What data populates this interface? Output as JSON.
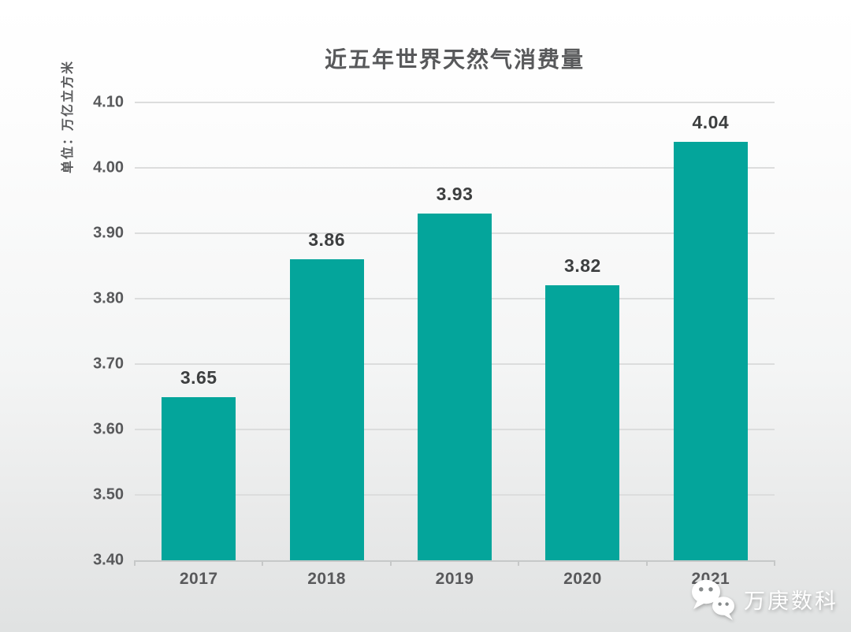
{
  "chart_data": {
    "type": "bar",
    "title": "近五年世界天然气消费量",
    "ylabel": "单位：万亿立方米",
    "xlabel": "",
    "categories": [
      "2017",
      "2018",
      "2019",
      "2020",
      "2021"
    ],
    "values": [
      3.65,
      3.86,
      3.93,
      3.82,
      4.04
    ],
    "value_label_decimals": 2,
    "ylim": [
      3.4,
      4.1
    ],
    "yticks": [
      "4.10",
      "4.00",
      "3.90",
      "3.80",
      "3.70",
      "3.60",
      "3.50",
      "3.40"
    ],
    "grid": true,
    "legend": "none",
    "bar_color": "#04A59B"
  },
  "watermark": {
    "icon": "wechat-icon",
    "text": "万庚数科"
  },
  "colors": {
    "bar": "#04A59B",
    "title_text": "#58595b",
    "axis_text": "#58595b",
    "value_text": "#3d3f40",
    "gridline": "#dcdddd",
    "axis_line": "#c6c8c8",
    "bg_top": "#ffffff",
    "bg_bottom": "#e0e2e2",
    "watermark_text": "#ffffff"
  }
}
